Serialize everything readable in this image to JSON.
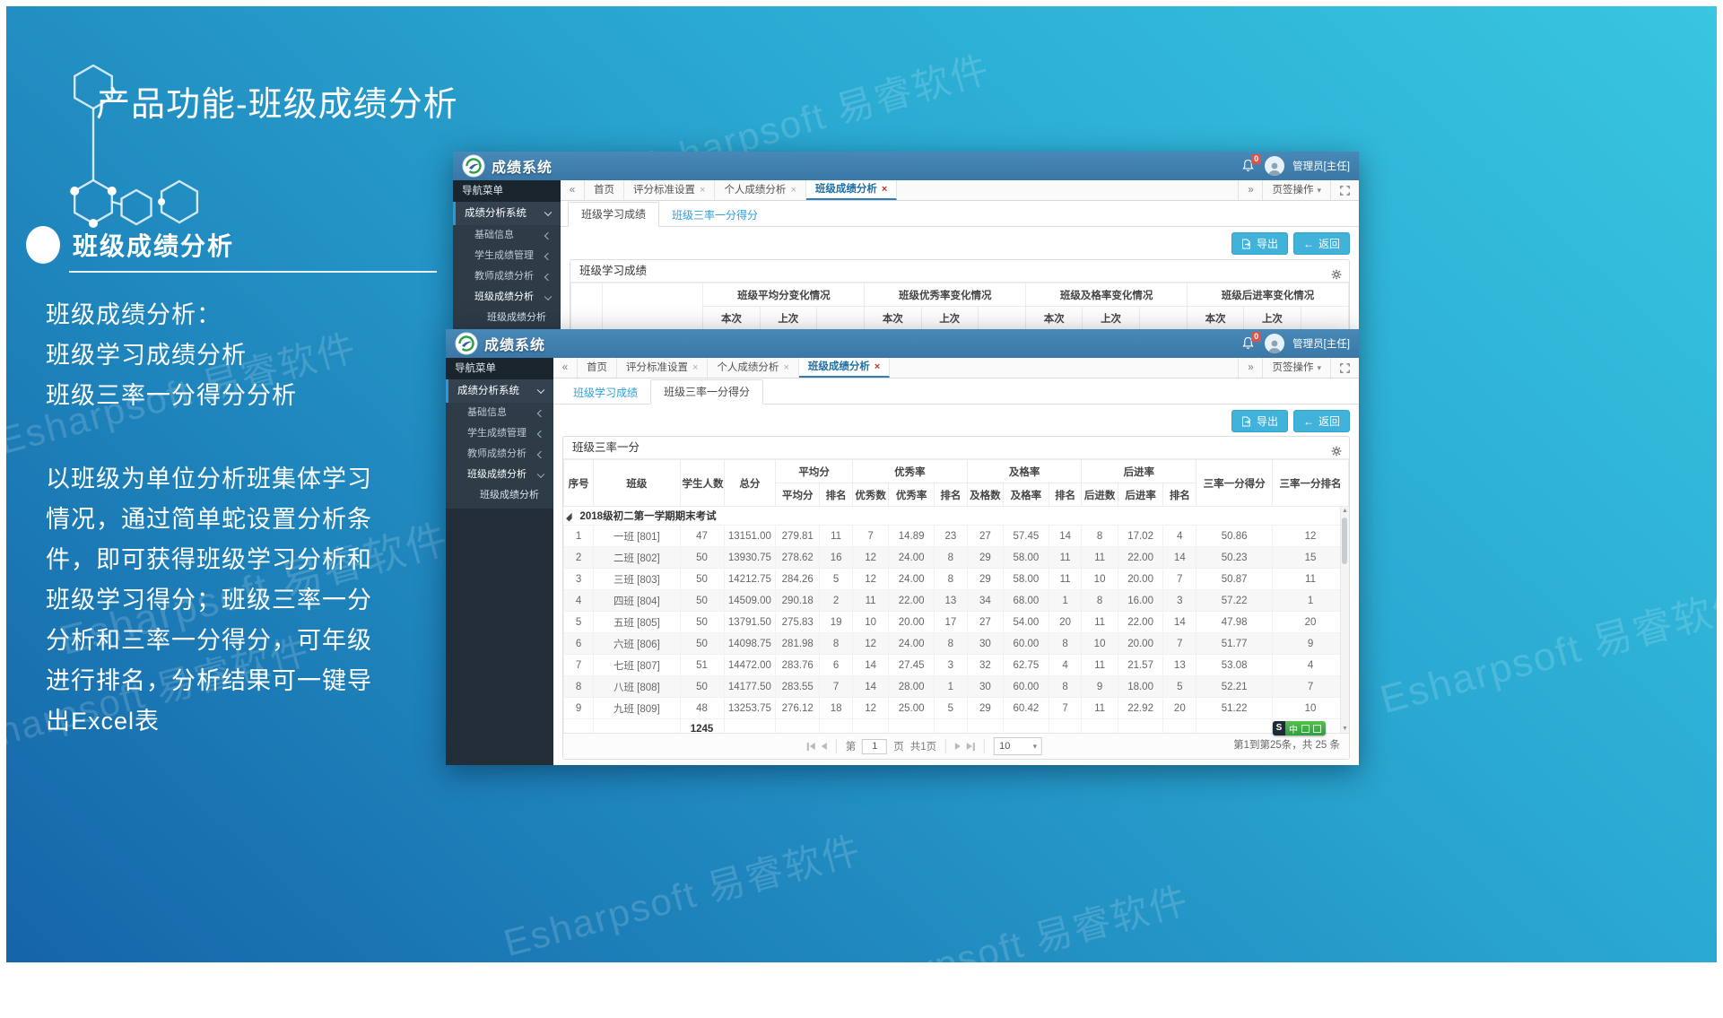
{
  "slide": {
    "title": "产品功能-班级成绩分析",
    "section_title": "班级成绩分析",
    "intro_lines": [
      "班级成绩分析：",
      "班级学习成绩分析",
      "班级三率一分得分分析"
    ],
    "body_lines": [
      "以班级为单位分析班集体学习",
      "情况，通过简单蛇设置分析条",
      "件，即可获得班级学习分析和",
      "班级学习得分；班级三率一分",
      "分析和三率一分得分，可年级",
      "进行排名，分析结果可一键导",
      "出Excel表"
    ],
    "watermark": "Esharpsoft 易睿软件",
    "ime_label": "中"
  },
  "app": {
    "brand": "成绩系统",
    "user": "管理员[主任]",
    "badge": "0",
    "nav_header": "导航菜单",
    "nav_root": "成绩分析系统",
    "nav_items": [
      "基础信息",
      "学生成绩管理",
      "教师成绩分析",
      "班级成绩分析"
    ],
    "nav_leaf": "班级成绩分析",
    "tabs": [
      "首页",
      "评分标准设置",
      "个人成绩分析",
      "班级成绩分析"
    ],
    "tab_ops": "页签操作",
    "subtab_learning": "班级学习成绩",
    "subtab_rates": "班级三率一分得分",
    "export_label": "导出",
    "back_label": "返回"
  },
  "window1": {
    "panel_title": "班级学习成绩",
    "group_headers": [
      "班级平均分变化情况",
      "班级优秀率变化情况",
      "班级及格率变化情况",
      "班级后进率变化情况"
    ],
    "sub_headers": [
      "本次",
      "上次"
    ]
  },
  "window2": {
    "panel_title": "班级三率一分",
    "fixed_cols": [
      "序号",
      "班级",
      "学生人数",
      "总分"
    ],
    "col_groups": [
      {
        "label": "平均分",
        "span": 2
      },
      {
        "label": "优秀率",
        "span": 3
      },
      {
        "label": "及格率",
        "span": 3
      },
      {
        "label": "后进率",
        "span": 3
      }
    ],
    "sub_cols": [
      "平均分",
      "排名",
      "优秀数",
      "优秀率",
      "排名",
      "及格数",
      "及格率",
      "排名",
      "后进数",
      "后进率",
      "排名"
    ],
    "tail_cols": [
      "三率一分得分",
      "三率一分排名"
    ],
    "section_label": "2018级初二第一学期期末考试",
    "rows": [
      [
        "1",
        "一班  [801]",
        "47",
        "13151.00",
        "279.81",
        "11",
        "7",
        "14.89",
        "23",
        "27",
        "57.45",
        "14",
        "8",
        "17.02",
        "4",
        "50.86",
        "12"
      ],
      [
        "2",
        "二班  [802]",
        "50",
        "13930.75",
        "278.62",
        "16",
        "12",
        "24.00",
        "8",
        "29",
        "58.00",
        "11",
        "11",
        "22.00",
        "14",
        "50.23",
        "15"
      ],
      [
        "3",
        "三班  [803]",
        "50",
        "14212.75",
        "284.26",
        "5",
        "12",
        "24.00",
        "8",
        "29",
        "58.00",
        "11",
        "10",
        "20.00",
        "7",
        "50.87",
        "11"
      ],
      [
        "4",
        "四班  [804]",
        "50",
        "14509.00",
        "290.18",
        "2",
        "11",
        "22.00",
        "13",
        "34",
        "68.00",
        "1",
        "8",
        "16.00",
        "3",
        "57.22",
        "1"
      ],
      [
        "5",
        "五班  [805]",
        "50",
        "13791.50",
        "275.83",
        "19",
        "10",
        "20.00",
        "17",
        "27",
        "54.00",
        "20",
        "11",
        "22.00",
        "14",
        "47.98",
        "20"
      ],
      [
        "6",
        "六班  [806]",
        "50",
        "14098.75",
        "281.98",
        "8",
        "12",
        "24.00",
        "8",
        "30",
        "60.00",
        "8",
        "10",
        "20.00",
        "7",
        "51.77",
        "9"
      ],
      [
        "7",
        "七班  [807]",
        "51",
        "14472.00",
        "283.76",
        "6",
        "14",
        "27.45",
        "3",
        "32",
        "62.75",
        "4",
        "11",
        "21.57",
        "13",
        "53.08",
        "4"
      ],
      [
        "8",
        "八班  [808]",
        "50",
        "14177.50",
        "283.55",
        "7",
        "14",
        "28.00",
        "1",
        "30",
        "60.00",
        "8",
        "9",
        "18.00",
        "5",
        "52.21",
        "7"
      ],
      [
        "9",
        "九班  [809]",
        "48",
        "13253.75",
        "276.12",
        "18",
        "12",
        "25.00",
        "5",
        "29",
        "60.42",
        "7",
        "11",
        "22.92",
        "20",
        "51.22",
        "10"
      ]
    ],
    "total_students": "1245",
    "pager": {
      "pre": "第",
      "page": "1",
      "post": "页",
      "total": "共1页",
      "size": "10",
      "info": "第1到第25条，共 25 条"
    }
  }
}
